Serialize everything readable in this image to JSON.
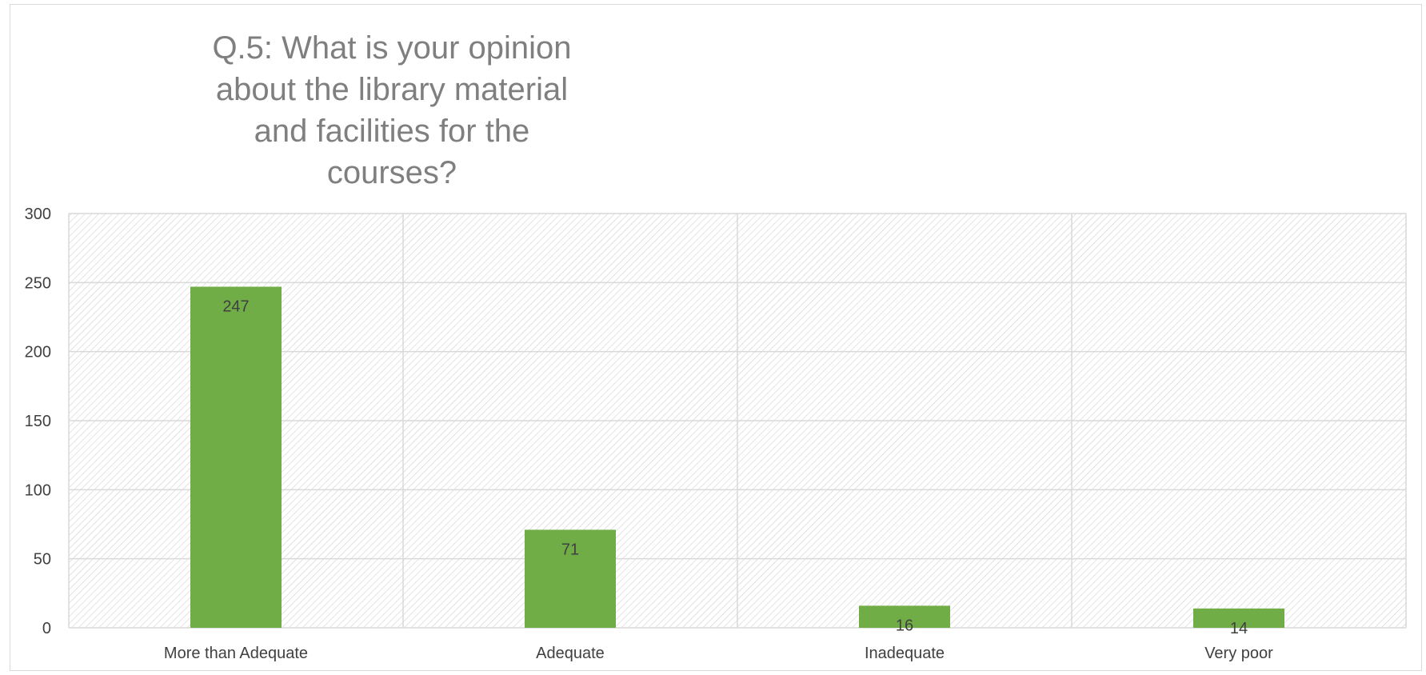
{
  "chart_data": {
    "type": "bar",
    "title": "Q.5: What is your opinion about the library material and facilities for the courses?",
    "title_lines": [
      "Q.5: What is your opinion",
      "about the library material",
      "and facilities for the",
      "courses?"
    ],
    "categories": [
      "More than Adequate",
      "Adequate",
      "Inadequate",
      "Very poor"
    ],
    "values": [
      247,
      71,
      16,
      14
    ],
    "data_labels": [
      "247",
      "71",
      "16",
      "14"
    ],
    "xlabel": "",
    "ylabel": "",
    "ylim": [
      0,
      300
    ],
    "yticks": [
      0,
      50,
      100,
      150,
      200,
      250,
      300
    ],
    "grid": true,
    "legend": "none",
    "plot_background": "hatched",
    "colors": {
      "bar": "#70ad47",
      "grid": "#d9d9d9",
      "hatch": "#d0d0d0",
      "title": "#7f7f7f",
      "text": "#404040"
    }
  }
}
